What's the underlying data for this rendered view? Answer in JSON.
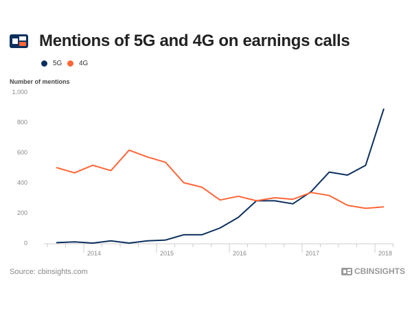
{
  "header": {
    "title": "Mentions of 5G and 4G on earnings calls",
    "logo_icon": "cbinsights-logo-icon"
  },
  "colors": {
    "5G": "#0b2f5e",
    "4G": "#ff6536",
    "axis": "#ccc",
    "brand_navy": "#0b2f5e",
    "brand_orange": "#ff6536"
  },
  "footer": {
    "source": "Source: cbinsights.com",
    "brand": "CBINSIGHTS"
  },
  "chart_data": {
    "type": "line",
    "title": "Mentions of 5G and 4G on earnings calls",
    "ylabel": "Number of mentions",
    "xlabel": "",
    "ylim": [
      0,
      1000
    ],
    "yticks": [
      "0",
      "200",
      "400",
      "600",
      "800",
      "1,000"
    ],
    "xticks": [
      "2014",
      "2015",
      "2016",
      "2017",
      "2018"
    ],
    "legend_position": "top-left",
    "grid": false,
    "x": [
      "Q3 2013",
      "Q4 2013",
      "Q1 2014",
      "Q2 2014",
      "Q3 2014",
      "Q4 2014",
      "Q1 2015",
      "Q2 2015",
      "Q3 2015",
      "Q4 2015",
      "Q1 2016",
      "Q2 2016",
      "Q3 2016",
      "Q4 2016",
      "Q1 2017",
      "Q2 2017",
      "Q3 2017",
      "Q4 2017",
      "Q1 2018"
    ],
    "series": [
      {
        "name": "5G",
        "values": [
          3,
          8,
          0,
          15,
          0,
          15,
          20,
          55,
          55,
          100,
          170,
          280,
          280,
          260,
          340,
          470,
          450,
          515,
          890
        ]
      },
      {
        "name": "4G",
        "values": [
          500,
          465,
          515,
          480,
          615,
          570,
          535,
          400,
          370,
          285,
          310,
          280,
          300,
          290,
          335,
          315,
          250,
          230,
          240
        ]
      }
    ]
  }
}
